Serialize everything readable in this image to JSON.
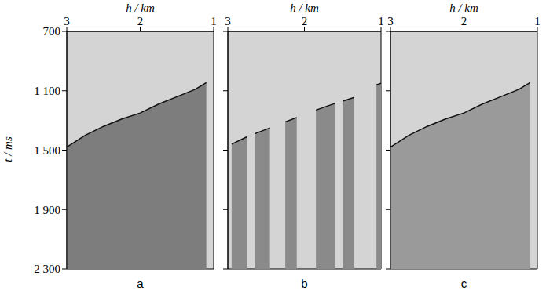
{
  "chart_data": [
    {
      "type": "area",
      "title": "a",
      "xlabel": "h / km",
      "ylabel": "t / ms",
      "xlim": [
        3,
        1
      ],
      "xticks": [
        3,
        2,
        1
      ],
      "ylim": [
        700,
        2300
      ],
      "yticks": [
        700,
        {
          "value": 1100,
          "label": "1 100"
        },
        {
          "value": 1500,
          "label": "1 500"
        },
        {
          "value": 1900,
          "label": "1 900"
        },
        {
          "value": 2300,
          "label": "2 300"
        }
      ],
      "color": "#7d7d7d",
      "x": [
        3,
        2.75,
        2.5,
        2.25,
        2,
        1.75,
        1.5,
        1.25,
        1.1
      ],
      "values": [
        1480,
        1400,
        1340,
        1290,
        1250,
        1190,
        1140,
        1090,
        1045
      ]
    },
    {
      "type": "area",
      "title": "b",
      "xlabel": "h / km",
      "xlim": [
        3,
        1
      ],
      "xticks": [
        3,
        2,
        1
      ],
      "ylim": [
        700,
        2300
      ],
      "yticks": [
        700,
        {
          "value": 1100,
          "label": "1 100"
        },
        {
          "value": 1500,
          "label": "1 500"
        },
        {
          "value": 1900,
          "label": "1 900"
        },
        {
          "value": 2300,
          "label": "2 300"
        }
      ],
      "tick_labels": "x",
      "color": "#8a8a8a",
      "x": [
        2.95,
        2.75,
        2.7,
        2.65,
        2.45,
        2.4,
        2.25,
        2.1,
        2.0,
        1.85,
        1.6,
        1.55,
        1.5,
        1.35,
        1.2,
        1.06,
        1.0
      ],
      "values": [
        1460,
        1410,
        null,
        1390,
        1350,
        null,
        1310,
        1280,
        null,
        1230,
        1185,
        null,
        1170,
        1145,
        null,
        1060,
        1050
      ]
    },
    {
      "type": "area",
      "title": "c",
      "xlabel": "h / km",
      "xlim": [
        3,
        1
      ],
      "xticks": [
        3,
        2,
        1
      ],
      "ylim": [
        700,
        2300
      ],
      "yticks": [
        700,
        {
          "value": 1100,
          "label": "1 100"
        },
        {
          "value": 1500,
          "label": "1 500"
        },
        {
          "value": 1900,
          "label": "1 900"
        },
        {
          "value": 2300,
          "label": "2 300"
        }
      ],
      "tick_labels": "x",
      "color": "#9a9a9a",
      "x": [
        3,
        2.75,
        2.5,
        2.25,
        2,
        1.75,
        1.5,
        1.25,
        1.1
      ],
      "values": [
        1480,
        1400,
        1340,
        1290,
        1250,
        1190,
        1140,
        1090,
        1045
      ]
    }
  ]
}
